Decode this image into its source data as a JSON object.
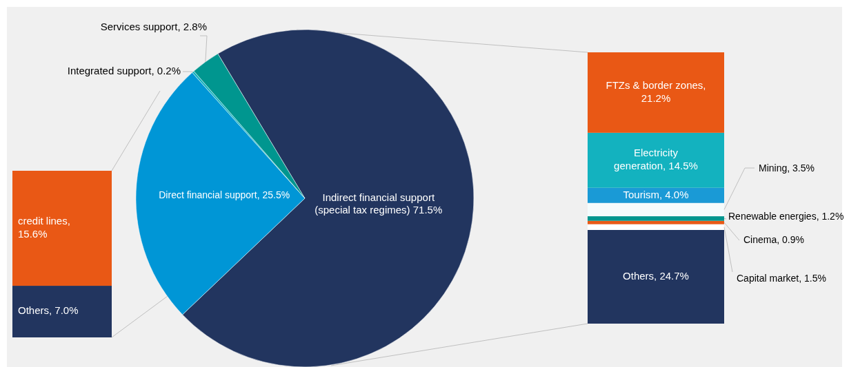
{
  "chart_data": [
    {
      "type": "pie",
      "categories": [
        "Indirect financial support (special tax regimes)",
        "Direct financial support",
        "Integrated support",
        "Services support"
      ],
      "values": [
        71.5,
        25.5,
        0.2,
        2.8
      ],
      "colors": [
        "#22355f",
        "#0096d6",
        "#13b2bf",
        "#00968f"
      ],
      "value_labels": [
        "71.5%",
        "25.5%",
        "0.2%",
        "2.8%"
      ]
    },
    {
      "type": "bar",
      "stacked": true,
      "categories": [
        null
      ],
      "series": [
        {
          "name": "Others,",
          "color": "#22355f",
          "values": [
            7.0
          ],
          "value_labels": [
            "7.0%"
          ]
        },
        {
          "name": "credit lines,",
          "color": "#e95815",
          "values": [
            15.6
          ],
          "value_labels": [
            "15.6%"
          ]
        }
      ]
    },
    {
      "type": "bar",
      "stacked": true,
      "categories": [
        null
      ],
      "series": [
        {
          "name": "Others,",
          "color": "#22355f",
          "values": [
            24.7
          ],
          "value_labels": [
            "24.7%"
          ]
        },
        {
          "name": "Capital market,",
          "color": "#ffffff",
          "values": [
            1.5
          ],
          "value_labels": [
            "1.5%"
          ]
        },
        {
          "name": "Cinema,",
          "color": "#e95815",
          "values": [
            0.9
          ],
          "value_labels": [
            "0.9%"
          ]
        },
        {
          "name": "Renewable energies,",
          "color": "#00968f",
          "values": [
            1.2
          ],
          "value_labels": [
            "1.2%"
          ]
        },
        {
          "name": "Mining,",
          "color": "#f4fbfc",
          "values": [
            3.5
          ],
          "value_labels": [
            "3.5%"
          ]
        },
        {
          "name": "Tourism,",
          "color": "#1a9ad6",
          "values": [
            4.0
          ],
          "value_labels": [
            "4.0%"
          ]
        },
        {
          "name": "Electricity generation,",
          "color": "#13b2bf",
          "values": [
            14.5
          ],
          "value_labels": [
            "14.5%"
          ]
        },
        {
          "name": "FTZs & border zones,",
          "color": "#e95815",
          "values": [
            21.2
          ],
          "value_labels": [
            "21.2%"
          ]
        }
      ]
    }
  ]
}
